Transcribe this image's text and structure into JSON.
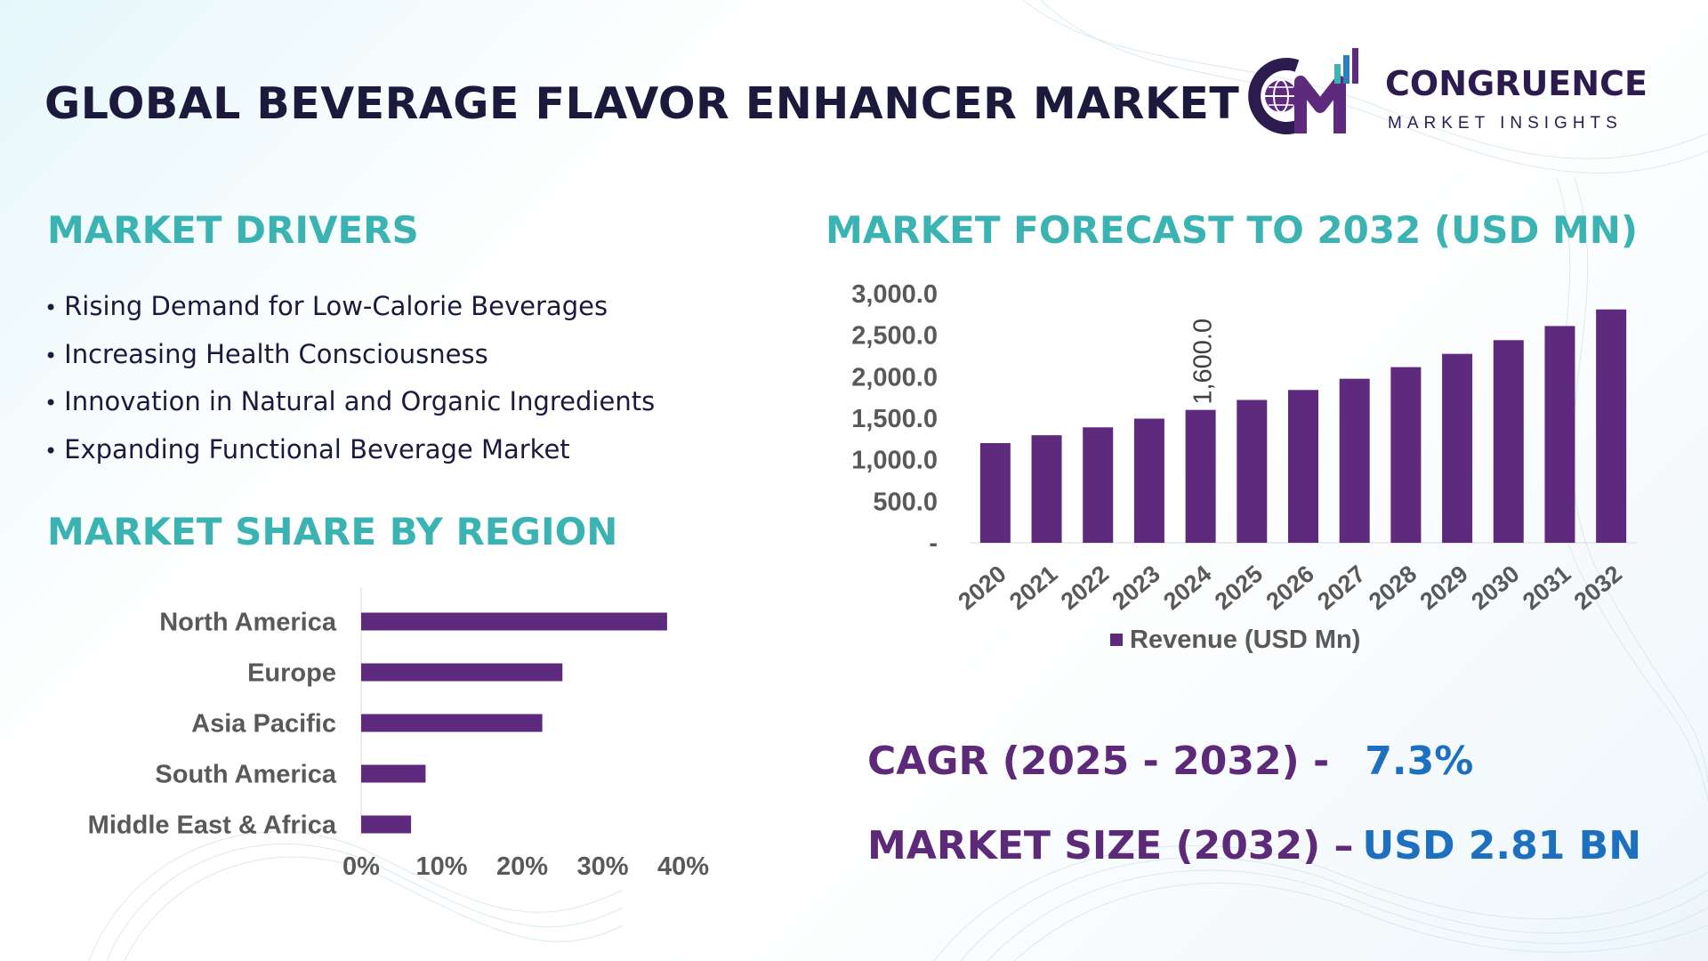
{
  "title": "GLOBAL BEVERAGE FLAVOR ENHANCER MARKET",
  "logo": {
    "name": "CONGRUENCE",
    "tagline": "MARKET INSIGHTS",
    "monogram": "CM",
    "icon": "globe-icon"
  },
  "colors": {
    "accent_teal": "#3cb3b3",
    "bar_purple": "#5e2a7e",
    "title_navy": "#1b1a3c",
    "stat_purple": "#5d2a7a",
    "stat_blue": "#1d6fc0"
  },
  "drivers": {
    "heading": "MARKET DRIVERS",
    "items": [
      "Rising Demand for Low-Calorie Beverages",
      "Increasing Health Consciousness",
      "Innovation in Natural and Organic Ingredients",
      "Expanding Functional Beverage Market"
    ]
  },
  "region": {
    "heading": "MARKET SHARE BY REGION"
  },
  "forecast": {
    "heading": "MARKET FORECAST TO 2032 (USD MN)"
  },
  "stats": {
    "cagr_label": "CAGR (2025 - 2032) -",
    "cagr_value": "7.3%",
    "size_label": "MARKET SIZE (2032) –",
    "size_value": "USD 2.81 BN"
  },
  "chart_data": [
    {
      "type": "bar",
      "orientation": "horizontal",
      "categories": [
        "North America",
        "Europe",
        "Asia Pacific",
        "South America",
        "Middle East & Africa"
      ],
      "values": [
        38,
        25,
        22.5,
        8,
        6.2
      ],
      "xlim": [
        0,
        40
      ],
      "x_ticks": [
        "0%",
        "10%",
        "20%",
        "30%",
        "40%"
      ],
      "grid": false
    },
    {
      "type": "bar",
      "categories": [
        "2020",
        "2021",
        "2022",
        "2023",
        "2024",
        "2025",
        "2026",
        "2027",
        "2028",
        "2029",
        "2030",
        "2031",
        "2032"
      ],
      "series": [
        {
          "name": "Revenue (USD Mn)",
          "values": [
            1200,
            1295,
            1390,
            1495,
            1600,
            1720,
            1840,
            1975,
            2115,
            2275,
            2440,
            2610,
            2810
          ]
        }
      ],
      "ylim": [
        0,
        3000
      ],
      "y_ticks": [
        "-",
        "500.0",
        "1,000.0",
        "1,500.0",
        "2,000.0",
        "2,500.0",
        "3,000.0"
      ],
      "data_labels": [
        {
          "category": "2024",
          "label": "1,600.0"
        }
      ],
      "legend": "bottom",
      "grid": false
    }
  ]
}
